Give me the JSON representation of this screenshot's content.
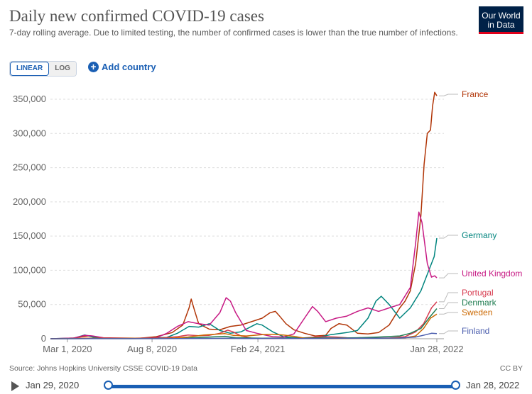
{
  "header": {
    "title": "Daily new confirmed COVID-19 cases",
    "subtitle": "7-day rolling average. Due to limited testing, the number of confirmed cases is lower than the true number of infections.",
    "logo_line1": "Our World",
    "logo_line2": "in Data"
  },
  "controls": {
    "linear_label": "LINEAR",
    "log_label": "LOG",
    "add_country_label": "Add country"
  },
  "footer": {
    "source": "Source: Johns Hopkins University CSSE COVID-19 Data",
    "license": "CC BY"
  },
  "timeline": {
    "start": "Jan 29, 2020",
    "end": "Jan 28, 2022"
  },
  "chart_data": {
    "type": "line",
    "title": "Daily new confirmed COVID-19 cases",
    "xlabel": "",
    "ylabel": "",
    "ylim": [
      0,
      350000
    ],
    "xlim_days": [
      0,
      730
    ],
    "x_tick_labels": [
      {
        "day": 32,
        "label": "Mar 1, 2020"
      },
      {
        "day": 192,
        "label": "Aug 8, 2020"
      },
      {
        "day": 392,
        "label": "Feb 24, 2021"
      },
      {
        "day": 730,
        "label": "Jan 28, 2022"
      }
    ],
    "y_ticks": [
      0,
      50000,
      100000,
      150000,
      200000,
      250000,
      300000,
      350000
    ],
    "y_tick_labels": [
      "0",
      "50,000",
      "100,000",
      "150,000",
      "200,000",
      "250,000",
      "300,000",
      "350,000"
    ],
    "series": [
      {
        "name": "France",
        "color": "#b13507",
        "end_value": 355000,
        "points": [
          [
            0,
            0
          ],
          [
            40,
            500
          ],
          [
            60,
            3000
          ],
          [
            75,
            4500
          ],
          [
            90,
            1500
          ],
          [
            120,
            600
          ],
          [
            170,
            800
          ],
          [
            200,
            3000
          ],
          [
            230,
            9000
          ],
          [
            250,
            20000
          ],
          [
            262,
            45000
          ],
          [
            266,
            58000
          ],
          [
            272,
            42000
          ],
          [
            280,
            22000
          ],
          [
            300,
            14000
          ],
          [
            320,
            13000
          ],
          [
            340,
            18000
          ],
          [
            360,
            20000
          ],
          [
            380,
            25000
          ],
          [
            400,
            30000
          ],
          [
            415,
            38000
          ],
          [
            425,
            40000
          ],
          [
            432,
            34000
          ],
          [
            445,
            22000
          ],
          [
            460,
            13000
          ],
          [
            480,
            8000
          ],
          [
            500,
            4000
          ],
          [
            520,
            5000
          ],
          [
            530,
            15000
          ],
          [
            545,
            22000
          ],
          [
            560,
            20000
          ],
          [
            580,
            8000
          ],
          [
            600,
            7000
          ],
          [
            620,
            9000
          ],
          [
            640,
            20000
          ],
          [
            660,
            45000
          ],
          [
            670,
            55000
          ],
          [
            680,
            70000
          ],
          [
            690,
            110000
          ],
          [
            700,
            180000
          ],
          [
            706,
            255000
          ],
          [
            712,
            300000
          ],
          [
            718,
            305000
          ],
          [
            722,
            340000
          ],
          [
            726,
            360000
          ],
          [
            730,
            355000
          ]
        ]
      },
      {
        "name": "Germany",
        "color": "#00847e",
        "end_value": 147000,
        "points": [
          [
            0,
            0
          ],
          [
            45,
            1000
          ],
          [
            65,
            5500
          ],
          [
            80,
            2500
          ],
          [
            100,
            600
          ],
          [
            170,
            800
          ],
          [
            220,
            2000
          ],
          [
            240,
            8000
          ],
          [
            262,
            18000
          ],
          [
            280,
            17000
          ],
          [
            300,
            22000
          ],
          [
            320,
            12000
          ],
          [
            340,
            8000
          ],
          [
            360,
            10000
          ],
          [
            380,
            18000
          ],
          [
            390,
            22000
          ],
          [
            400,
            20000
          ],
          [
            420,
            10000
          ],
          [
            440,
            3000
          ],
          [
            470,
            800
          ],
          [
            500,
            1000
          ],
          [
            530,
            6000
          ],
          [
            560,
            9000
          ],
          [
            580,
            12000
          ],
          [
            600,
            30000
          ],
          [
            615,
            55000
          ],
          [
            625,
            62000
          ],
          [
            640,
            50000
          ],
          [
            660,
            30000
          ],
          [
            680,
            45000
          ],
          [
            700,
            70000
          ],
          [
            715,
            100000
          ],
          [
            725,
            120000
          ],
          [
            730,
            147000
          ]
        ]
      },
      {
        "name": "United Kingdom",
        "color": "#c71a84",
        "end_value": 89000,
        "points": [
          [
            0,
            0
          ],
          [
            45,
            1000
          ],
          [
            65,
            5000
          ],
          [
            80,
            4000
          ],
          [
            100,
            1500
          ],
          [
            160,
            800
          ],
          [
            200,
            1500
          ],
          [
            220,
            8000
          ],
          [
            240,
            18000
          ],
          [
            260,
            25000
          ],
          [
            280,
            22000
          ],
          [
            300,
            20000
          ],
          [
            320,
            38000
          ],
          [
            332,
            60000
          ],
          [
            340,
            55000
          ],
          [
            350,
            38000
          ],
          [
            370,
            12000
          ],
          [
            390,
            8000
          ],
          [
            420,
            3000
          ],
          [
            440,
            2500
          ],
          [
            460,
            7000
          ],
          [
            480,
            30000
          ],
          [
            495,
            47000
          ],
          [
            505,
            40000
          ],
          [
            520,
            25000
          ],
          [
            540,
            30000
          ],
          [
            560,
            33000
          ],
          [
            580,
            40000
          ],
          [
            600,
            45000
          ],
          [
            620,
            40000
          ],
          [
            640,
            45000
          ],
          [
            660,
            50000
          ],
          [
            680,
            75000
          ],
          [
            690,
            140000
          ],
          [
            696,
            185000
          ],
          [
            702,
            170000
          ],
          [
            712,
            110000
          ],
          [
            720,
            90000
          ],
          [
            726,
            92000
          ],
          [
            730,
            89000
          ]
        ]
      },
      {
        "name": "Portugal",
        "color": "#d73c50",
        "end_value": 54000,
        "points": [
          [
            0,
            0
          ],
          [
            50,
            200
          ],
          [
            70,
            800
          ],
          [
            90,
            600
          ],
          [
            150,
            400
          ],
          [
            200,
            600
          ],
          [
            240,
            3000
          ],
          [
            260,
            5500
          ],
          [
            280,
            4500
          ],
          [
            300,
            5000
          ],
          [
            320,
            8000
          ],
          [
            335,
            12500
          ],
          [
            345,
            10000
          ],
          [
            360,
            4000
          ],
          [
            380,
            800
          ],
          [
            420,
            400
          ],
          [
            470,
            600
          ],
          [
            500,
            2500
          ],
          [
            520,
            3000
          ],
          [
            540,
            2500
          ],
          [
            560,
            1500
          ],
          [
            600,
            1000
          ],
          [
            640,
            1000
          ],
          [
            670,
            3000
          ],
          [
            690,
            10000
          ],
          [
            705,
            22000
          ],
          [
            720,
            45000
          ],
          [
            730,
            54000
          ]
        ]
      },
      {
        "name": "Denmark",
        "color": "#227e53",
        "end_value": 44000,
        "points": [
          [
            0,
            0
          ],
          [
            80,
            200
          ],
          [
            150,
            100
          ],
          [
            220,
            500
          ],
          [
            260,
            1000
          ],
          [
            300,
            2500
          ],
          [
            330,
            3500
          ],
          [
            350,
            1500
          ],
          [
            400,
            800
          ],
          [
            450,
            1000
          ],
          [
            500,
            1200
          ],
          [
            540,
            1000
          ],
          [
            580,
            1500
          ],
          [
            620,
            2500
          ],
          [
            660,
            4000
          ],
          [
            680,
            8000
          ],
          [
            700,
            15000
          ],
          [
            715,
            30000
          ],
          [
            730,
            44000
          ]
        ]
      },
      {
        "name": "Sweden",
        "color": "#cb6800",
        "end_value": 36000,
        "points": [
          [
            0,
            0
          ],
          [
            80,
            600
          ],
          [
            150,
            800
          ],
          [
            220,
            400
          ],
          [
            260,
            2500
          ],
          [
            290,
            5500
          ],
          [
            310,
            6500
          ],
          [
            330,
            7500
          ],
          [
            345,
            5000
          ],
          [
            370,
            4000
          ],
          [
            400,
            6000
          ],
          [
            420,
            6500
          ],
          [
            440,
            5500
          ],
          [
            460,
            3500
          ],
          [
            480,
            700
          ],
          [
            520,
            300
          ],
          [
            560,
            500
          ],
          [
            600,
            800
          ],
          [
            640,
            700
          ],
          [
            670,
            1500
          ],
          [
            690,
            4000
          ],
          [
            705,
            15000
          ],
          [
            718,
            30000
          ],
          [
            730,
            36000
          ]
        ]
      },
      {
        "name": "Finland",
        "color": "#4a5dad",
        "end_value": 7500,
        "points": [
          [
            0,
            0
          ],
          [
            100,
            100
          ],
          [
            200,
            100
          ],
          [
            300,
            500
          ],
          [
            340,
            800
          ],
          [
            370,
            300
          ],
          [
            420,
            500
          ],
          [
            460,
            400
          ],
          [
            500,
            400
          ],
          [
            540,
            600
          ],
          [
            580,
            800
          ],
          [
            620,
            800
          ],
          [
            660,
            1000
          ],
          [
            690,
            2500
          ],
          [
            710,
            6000
          ],
          [
            720,
            8000
          ],
          [
            730,
            7500
          ]
        ]
      }
    ]
  }
}
